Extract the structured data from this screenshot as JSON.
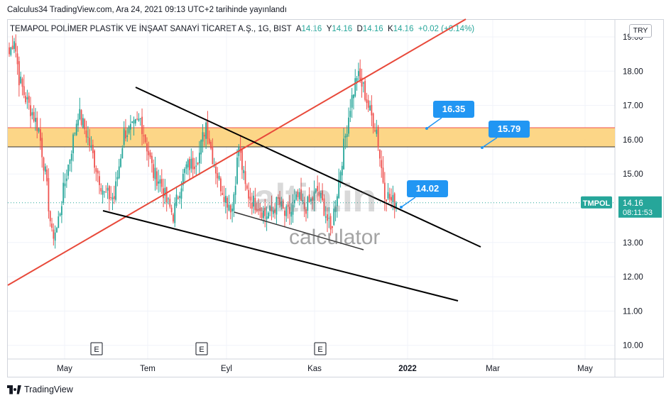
{
  "header": {
    "publisher_line": "Calculus34 TradingView.com, Ara 24, 2021 09:13 UTC+2 tarihinde yayınlandı"
  },
  "legend": {
    "symbol_desc": "TEMAPOL POLİMER PLASTİK VE İNŞAAT SANAYİ TİCARET A.Ş., 1G, BIST",
    "o_label": "A",
    "o": "14.16",
    "h_label": "Y",
    "h": "14.16",
    "l_label": "D",
    "l": "14.16",
    "c_label": "K",
    "c": "14.16",
    "change": "+0.02 (+0.14%)"
  },
  "currency": "TRY",
  "footer": {
    "brand": "TradingView"
  },
  "watermark": {
    "logo_text": "altin.in",
    "sub_text": "calculator"
  },
  "colors": {
    "up": "#26a69a",
    "down": "#ef5350",
    "zone_fill": "#fcd27a",
    "zone_line": "#ef5350",
    "trendline_red": "#e8493a",
    "trendline_black": "#000000",
    "callout": "#2196f3",
    "symbol_badge": "#26a69a"
  },
  "chart_data": {
    "type": "candlestick",
    "symbol": "TMPOL",
    "ylim": [
      9.7,
      19.5
    ],
    "y_ticks": [
      "19.00",
      "18.00",
      "17.00",
      "16.00",
      "15.00",
      "14.00",
      "13.00",
      "12.00",
      "11.00",
      "10.00"
    ],
    "x_ticks": [
      "May",
      "Tem",
      "Eyl",
      "Kas",
      "2022",
      "Mar",
      "May"
    ],
    "x_tick_bold": "2022",
    "last_price": "14.16",
    "last_price_countdown": "08:11:53",
    "zone": {
      "low": 15.79,
      "high": 16.35
    },
    "callouts": [
      {
        "value": "16.35"
      },
      {
        "value": "15.79"
      },
      {
        "value": "14.02"
      }
    ],
    "earnings_markers": [
      "E",
      "E",
      "E"
    ],
    "anchors": [
      {
        "i": 0,
        "c": 18.5
      },
      {
        "i": 3,
        "c": 19.0
      },
      {
        "i": 6,
        "c": 17.8
      },
      {
        "i": 10,
        "c": 17.2
      },
      {
        "i": 14,
        "c": 16.8
      },
      {
        "i": 18,
        "c": 16.3
      },
      {
        "i": 22,
        "c": 15.0
      },
      {
        "i": 26,
        "c": 13.2
      },
      {
        "i": 29,
        "c": 13.4
      },
      {
        "i": 33,
        "c": 14.5
      },
      {
        "i": 37,
        "c": 15.5
      },
      {
        "i": 42,
        "c": 16.8
      },
      {
        "i": 47,
        "c": 16.2
      },
      {
        "i": 53,
        "c": 15.2
      },
      {
        "i": 58,
        "c": 14.4
      },
      {
        "i": 64,
        "c": 14.3
      },
      {
        "i": 70,
        "c": 16.2
      },
      {
        "i": 75,
        "c": 16.3
      },
      {
        "i": 80,
        "c": 16.6
      },
      {
        "i": 84,
        "c": 15.8
      },
      {
        "i": 88,
        "c": 15.0
      },
      {
        "i": 92,
        "c": 14.8
      },
      {
        "i": 96,
        "c": 14.2
      },
      {
        "i": 100,
        "c": 13.8
      },
      {
        "i": 104,
        "c": 14.6
      },
      {
        "i": 108,
        "c": 15.2
      },
      {
        "i": 112,
        "c": 15.3
      },
      {
        "i": 116,
        "c": 15.6
      },
      {
        "i": 120,
        "c": 16.5
      },
      {
        "i": 124,
        "c": 15.5
      },
      {
        "i": 128,
        "c": 14.8
      },
      {
        "i": 132,
        "c": 14.3
      },
      {
        "i": 136,
        "c": 14.0
      },
      {
        "i": 140,
        "c": 15.8
      },
      {
        "i": 144,
        "c": 14.6
      },
      {
        "i": 148,
        "c": 14.2
      },
      {
        "i": 152,
        "c": 14.1
      },
      {
        "i": 156,
        "c": 13.8
      },
      {
        "i": 160,
        "c": 13.9
      },
      {
        "i": 164,
        "c": 14.2
      },
      {
        "i": 168,
        "c": 13.8
      },
      {
        "i": 172,
        "c": 13.9
      },
      {
        "i": 176,
        "c": 14.3
      },
      {
        "i": 180,
        "c": 14.0
      },
      {
        "i": 184,
        "c": 14.2
      },
      {
        "i": 188,
        "c": 14.5
      },
      {
        "i": 192,
        "c": 14.0
      },
      {
        "i": 196,
        "c": 13.3
      },
      {
        "i": 200,
        "c": 14.5
      },
      {
        "i": 204,
        "c": 15.8
      },
      {
        "i": 208,
        "c": 17.0
      },
      {
        "i": 212,
        "c": 17.9
      },
      {
        "i": 216,
        "c": 17.5
      },
      {
        "i": 220,
        "c": 16.8
      },
      {
        "i": 224,
        "c": 16.3
      },
      {
        "i": 226,
        "c": 15.5
      },
      {
        "i": 229,
        "c": 14.5
      },
      {
        "i": 233,
        "c": 14.2
      },
      {
        "i": 236,
        "c": 14.16
      }
    ]
  }
}
